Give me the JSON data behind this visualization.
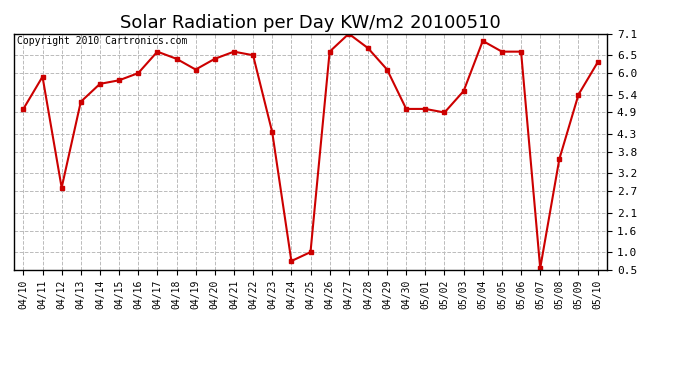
{
  "title": "Solar Radiation per Day KW/m2 20100510",
  "copyright": "Copyright 2010 Cartronics.com",
  "dates": [
    "04/10",
    "04/11",
    "04/12",
    "04/13",
    "04/14",
    "04/15",
    "04/16",
    "04/17",
    "04/18",
    "04/19",
    "04/20",
    "04/21",
    "04/22",
    "04/23",
    "04/24",
    "04/25",
    "04/26",
    "04/27",
    "04/28",
    "04/29",
    "04/30",
    "05/01",
    "05/02",
    "05/03",
    "05/04",
    "05/05",
    "05/06",
    "05/07",
    "05/08",
    "05/09",
    "05/10"
  ],
  "values": [
    5.0,
    5.9,
    2.8,
    5.2,
    5.7,
    5.8,
    6.0,
    6.6,
    6.4,
    6.1,
    6.4,
    6.6,
    6.5,
    4.35,
    0.75,
    1.0,
    6.6,
    7.1,
    6.7,
    6.1,
    5.0,
    5.0,
    4.9,
    5.5,
    6.9,
    6.6,
    6.6,
    0.55,
    3.6,
    5.4,
    6.3
  ],
  "yticks": [
    0.5,
    1.0,
    1.6,
    2.1,
    2.7,
    3.2,
    3.8,
    4.3,
    4.9,
    5.4,
    6.0,
    6.5,
    7.1
  ],
  "ymin": 0.5,
  "ymax": 7.1,
  "line_color": "#cc0000",
  "marker": "s",
  "marker_size": 3,
  "bg_color": "#ffffff",
  "grid_color": "#bbbbbb",
  "title_fontsize": 13,
  "copyright_fontsize": 7,
  "tick_fontsize": 8,
  "xtick_fontsize": 7
}
